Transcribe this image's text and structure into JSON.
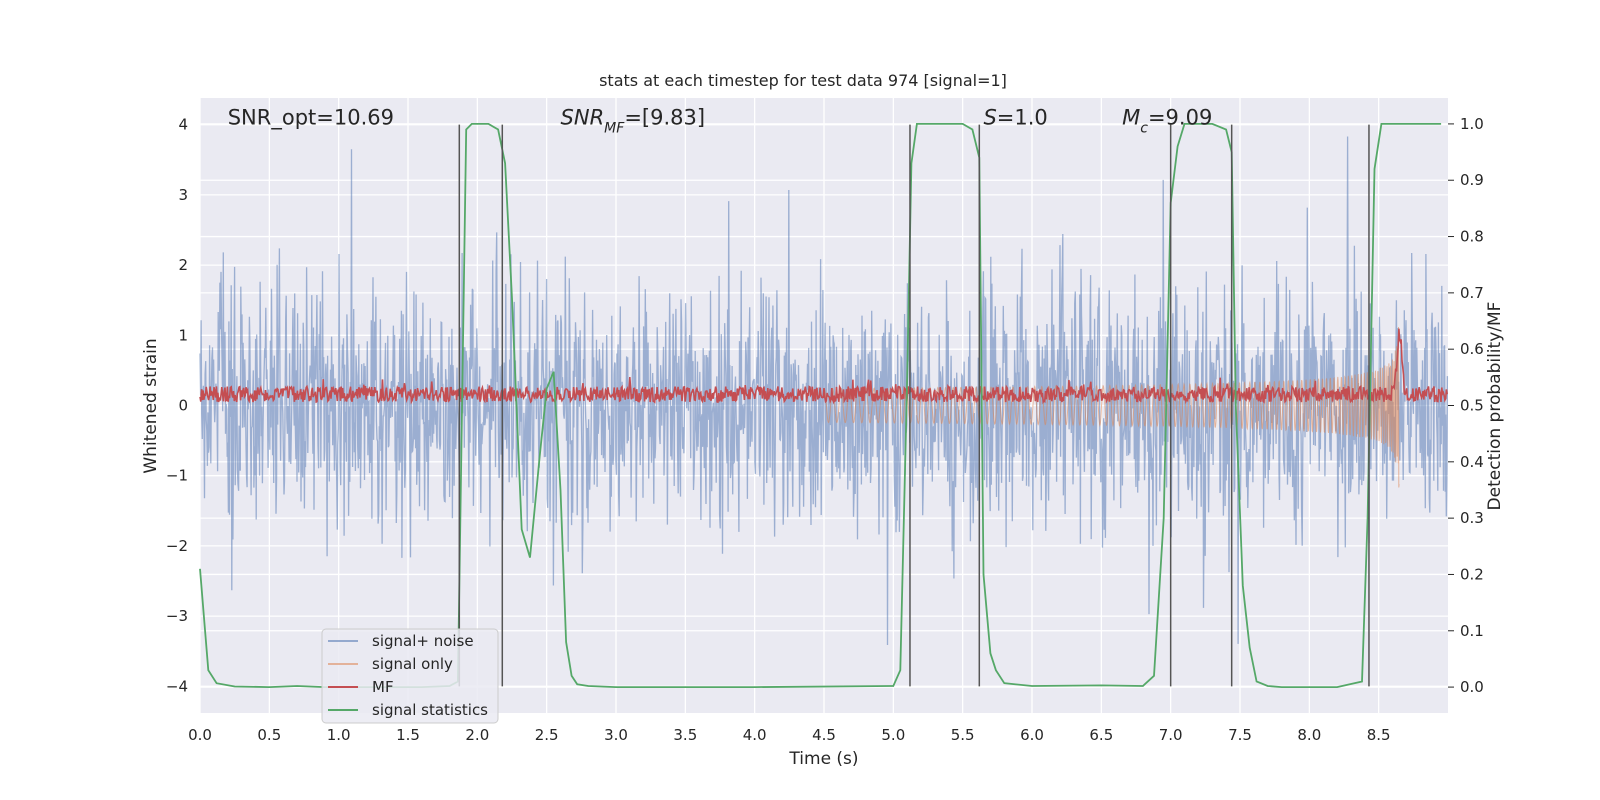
{
  "chart_data": {
    "type": "line",
    "title": "stats at each timestep for test data 974 [signal=1]",
    "xlabel": "Time (s)",
    "ylabel_left": "Whitened strain",
    "ylabel_right": "Detection probability/MF",
    "xlim": [
      0.0,
      9.0
    ],
    "ylim_left": [
      -4.38,
      4.38
    ],
    "ylim_right": [
      -0.046,
      1.046
    ],
    "xticks": [
      0.0,
      0.5,
      1.0,
      1.5,
      2.0,
      2.5,
      3.0,
      3.5,
      4.0,
      4.5,
      5.0,
      5.5,
      6.0,
      6.5,
      7.0,
      7.5,
      8.0,
      8.5
    ],
    "xtick_labels": [
      "0.0",
      "0.5",
      "1.0",
      "1.5",
      "2.0",
      "2.5",
      "3.0",
      "3.5",
      "4.0",
      "4.5",
      "5.0",
      "5.5",
      "6.0",
      "6.5",
      "7.0",
      "7.5",
      "8.0",
      "8.5"
    ],
    "yticks_left": [
      -4,
      -3,
      -2,
      -1,
      0,
      1,
      2,
      3,
      4
    ],
    "ytick_labels_left": [
      "−4",
      "−3",
      "−2",
      "−1",
      "0",
      "1",
      "2",
      "3",
      "4"
    ],
    "yticks_right": [
      0.0,
      0.1,
      0.2,
      0.3,
      0.4,
      0.5,
      0.6,
      0.7,
      0.8,
      0.9,
      1.0
    ],
    "ytick_labels_right": [
      "0.0",
      "0.1",
      "0.2",
      "0.3",
      "0.4",
      "0.5",
      "0.6",
      "0.7",
      "0.8",
      "0.9",
      "1.0"
    ],
    "grid": true,
    "background": "#eaeaf2",
    "legend_position": "lower-left",
    "annotations": [
      {
        "text": "SNR_opt=10.69",
        "x": 0.2,
        "y": 4.1
      },
      {
        "text": "SNR_MF=[9.83]",
        "x": 2.6,
        "y": 4.1
      },
      {
        "text": "S=1.0",
        "x": 5.65,
        "y": 4.1
      },
      {
        "text": "M_c=9.09",
        "x": 6.65,
        "y": 4.1
      }
    ],
    "vertical_lines": [
      1.87,
      2.18,
      5.12,
      5.62,
      7.0,
      7.44,
      8.43
    ],
    "series": [
      {
        "name": "signal+ noise",
        "color": "#4c72b0",
        "axis": "left",
        "kind": "noise",
        "amplitude_range": [
          -4.0,
          4.0
        ]
      },
      {
        "name": "signal only",
        "color": "#dd8452",
        "axis": "left",
        "kind": "chirp",
        "start_time": 4.5,
        "peak_time": 8.65,
        "peak_amplitude": 1.4
      },
      {
        "name": "MF",
        "color": "#c44e52",
        "axis": "right",
        "kind": "mf",
        "baseline": 0.52,
        "spike_time": 8.65,
        "spike_value": 0.63
      },
      {
        "name": "signal statistics",
        "color": "#55a868",
        "axis": "right",
        "x": [
          0.0,
          0.06,
          0.12,
          0.25,
          0.5,
          0.7,
          0.9,
          1.3,
          1.6,
          1.8,
          1.86,
          1.92,
          1.96,
          2.0,
          2.08,
          2.15,
          2.2,
          2.25,
          2.32,
          2.38,
          2.45,
          2.5,
          2.55,
          2.6,
          2.64,
          2.68,
          2.72,
          2.8,
          3.0,
          4.0,
          5.0,
          5.05,
          5.1,
          5.13,
          5.17,
          5.21,
          5.3,
          5.5,
          5.57,
          5.62,
          5.65,
          5.7,
          5.74,
          5.8,
          6.0,
          6.5,
          6.8,
          6.88,
          6.95,
          7.0,
          7.05,
          7.1,
          7.2,
          7.3,
          7.4,
          7.44,
          7.47,
          7.52,
          7.57,
          7.62,
          7.7,
          7.8,
          8.0,
          8.2,
          8.38,
          8.42,
          8.47,
          8.52,
          8.6,
          8.8,
          8.95
        ],
        "y": [
          0.21,
          0.03,
          0.007,
          0.001,
          0.0,
          0.002,
          0.0,
          0.0,
          0.0,
          0.002,
          0.01,
          0.99,
          1.0,
          1.0,
          1.0,
          0.99,
          0.93,
          0.69,
          0.28,
          0.23,
          0.41,
          0.53,
          0.56,
          0.35,
          0.08,
          0.02,
          0.005,
          0.002,
          0.0,
          0.0,
          0.002,
          0.03,
          0.55,
          0.93,
          1.0,
          1.0,
          1.0,
          1.0,
          0.99,
          0.94,
          0.2,
          0.06,
          0.03,
          0.007,
          0.002,
          0.003,
          0.002,
          0.02,
          0.3,
          0.86,
          0.96,
          1.0,
          1.0,
          1.0,
          0.99,
          0.95,
          0.5,
          0.18,
          0.07,
          0.01,
          0.002,
          0.0,
          0.0,
          0.0,
          0.01,
          0.3,
          0.92,
          1.0,
          1.0,
          1.0,
          1.0
        ]
      }
    ]
  }
}
